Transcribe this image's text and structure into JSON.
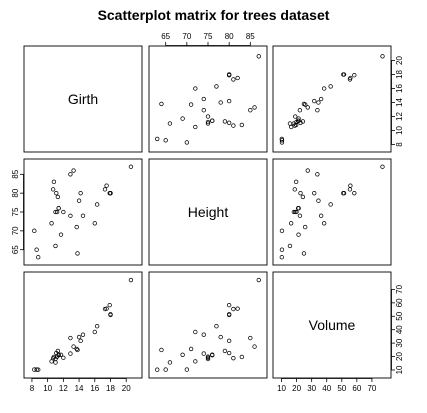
{
  "chart_data": {
    "type": "scatter",
    "title": "Scatterplot matrix for trees dataset",
    "variables": [
      {
        "name": "Girth",
        "range": [
          7.5,
          21.5
        ],
        "ticks": [
          8,
          10,
          12,
          14,
          16,
          18,
          20
        ]
      },
      {
        "name": "Height",
        "range": [
          62,
          88
        ],
        "ticks": [
          65,
          70,
          75,
          80,
          85
        ]
      },
      {
        "name": "Volume",
        "range": [
          7,
          80
        ],
        "ticks": [
          10,
          20,
          30,
          40,
          50,
          60,
          70
        ]
      }
    ],
    "observations": {
      "Girth": [
        8.3,
        8.6,
        8.8,
        10.5,
        10.7,
        10.8,
        11.0,
        11.0,
        11.1,
        11.2,
        11.3,
        11.4,
        11.4,
        11.7,
        12.0,
        12.9,
        12.9,
        13.3,
        13.7,
        13.8,
        14.0,
        14.2,
        14.5,
        16.0,
        16.3,
        17.3,
        17.5,
        17.9,
        18.0,
        18.0,
        20.6
      ],
      "Height": [
        70,
        65,
        63,
        72,
        81,
        83,
        66,
        75,
        80,
        75,
        79,
        76,
        76,
        69,
        75,
        74,
        85,
        86,
        71,
        64,
        78,
        80,
        74,
        72,
        77,
        81,
        82,
        80,
        80,
        80,
        87
      ],
      "Volume": [
        10.3,
        10.3,
        10.2,
        16.4,
        18.8,
        19.7,
        15.6,
        18.2,
        22.6,
        19.9,
        24.2,
        21.0,
        21.4,
        21.3,
        19.1,
        22.2,
        33.8,
        27.4,
        25.7,
        24.9,
        34.5,
        31.7,
        36.3,
        38.3,
        42.6,
        55.4,
        55.7,
        58.3,
        51.5,
        51.0,
        77.0
      ]
    },
    "grid": false,
    "legend": "none"
  }
}
